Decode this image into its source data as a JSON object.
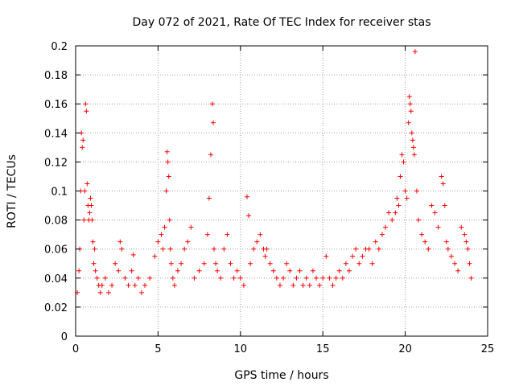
{
  "chart_data": {
    "type": "scatter",
    "title": "Day 072 of 2021, Rate Of TEC Index for receiver stas",
    "xlabel": "GPS time / hours",
    "ylabel": "ROTI / TECUs",
    "xlim": [
      0,
      25
    ],
    "ylim": [
      0,
      0.2
    ],
    "x_ticks": [
      0,
      5,
      10,
      15,
      20,
      25
    ],
    "x_tick_labels": [
      "0",
      "5",
      "10",
      "15",
      "20",
      "25"
    ],
    "y_ticks": [
      0,
      0.02,
      0.04,
      0.06,
      0.08,
      0.1,
      0.12,
      0.14,
      0.16,
      0.18,
      0.2
    ],
    "y_tick_labels": [
      "0",
      "0.02",
      "0.04",
      "0.06",
      "0.08",
      "0.1",
      "0.12",
      "0.14",
      "0.16",
      "0.18",
      "0.2"
    ],
    "grid": true,
    "marker": "plus",
    "color": "#ff0000",
    "series": [
      {
        "name": "ROTI",
        "x": [
          0.1,
          0.2,
          0.25,
          0.3,
          0.35,
          0.4,
          0.45,
          0.5,
          0.55,
          0.6,
          0.65,
          0.7,
          0.75,
          0.8,
          0.85,
          0.9,
          0.95,
          1.0,
          1.05,
          1.1,
          1.15,
          1.2,
          1.3,
          1.4,
          1.5,
          1.6,
          1.8,
          2.0,
          2.2,
          2.4,
          2.6,
          2.7,
          2.8,
          3.0,
          3.2,
          3.4,
          3.5,
          3.6,
          3.8,
          4.0,
          4.2,
          4.5,
          4.8,
          5.0,
          5.2,
          5.3,
          5.4,
          5.5,
          5.55,
          5.6,
          5.65,
          5.7,
          5.75,
          5.8,
          5.9,
          6.0,
          6.2,
          6.4,
          6.6,
          6.8,
          7.0,
          7.2,
          7.5,
          7.8,
          8.0,
          8.1,
          8.2,
          8.3,
          8.35,
          8.4,
          8.5,
          8.6,
          8.8,
          9.0,
          9.2,
          9.4,
          9.6,
          9.8,
          10.0,
          10.2,
          10.4,
          10.5,
          10.6,
          10.8,
          11.0,
          11.2,
          11.4,
          11.5,
          11.6,
          11.8,
          12.0,
          12.2,
          12.4,
          12.6,
          12.8,
          13.0,
          13.2,
          13.4,
          13.6,
          13.8,
          14.0,
          14.2,
          14.4,
          14.6,
          14.8,
          15.0,
          15.2,
          15.4,
          15.6,
          15.8,
          16.0,
          16.2,
          16.4,
          16.6,
          16.8,
          17.0,
          17.2,
          17.4,
          17.6,
          17.8,
          18.0,
          18.2,
          18.4,
          18.6,
          18.8,
          19.0,
          19.2,
          19.4,
          19.5,
          19.6,
          19.7,
          19.8,
          19.9,
          20.0,
          20.1,
          20.2,
          20.25,
          20.3,
          20.35,
          20.4,
          20.45,
          20.5,
          20.55,
          20.6,
          20.7,
          20.8,
          21.0,
          21.2,
          21.4,
          21.6,
          21.8,
          22.0,
          22.2,
          22.3,
          22.4,
          22.5,
          22.6,
          22.8,
          23.0,
          23.2,
          23.4,
          23.6,
          23.7,
          23.8,
          23.9,
          24.0
        ],
        "y": [
          0.03,
          0.045,
          0.06,
          0.1,
          0.14,
          0.13,
          0.135,
          0.08,
          0.1,
          0.16,
          0.155,
          0.105,
          0.09,
          0.08,
          0.085,
          0.095,
          0.09,
          0.08,
          0.065,
          0.05,
          0.06,
          0.045,
          0.04,
          0.035,
          0.03,
          0.035,
          0.04,
          0.03,
          0.035,
          0.05,
          0.045,
          0.065,
          0.06,
          0.04,
          0.035,
          0.045,
          0.056,
          0.035,
          0.04,
          0.03,
          0.035,
          0.04,
          0.055,
          0.065,
          0.07,
          0.06,
          0.075,
          0.1,
          0.127,
          0.12,
          0.11,
          0.08,
          0.06,
          0.05,
          0.04,
          0.035,
          0.045,
          0.05,
          0.06,
          0.065,
          0.075,
          0.04,
          0.045,
          0.05,
          0.07,
          0.095,
          0.125,
          0.16,
          0.147,
          0.06,
          0.05,
          0.045,
          0.04,
          0.06,
          0.07,
          0.05,
          0.04,
          0.045,
          0.04,
          0.035,
          0.096,
          0.083,
          0.05,
          0.06,
          0.065,
          0.07,
          0.06,
          0.055,
          0.06,
          0.05,
          0.045,
          0.04,
          0.035,
          0.04,
          0.05,
          0.045,
          0.035,
          0.04,
          0.045,
          0.035,
          0.04,
          0.035,
          0.045,
          0.04,
          0.035,
          0.04,
          0.055,
          0.04,
          0.035,
          0.04,
          0.045,
          0.04,
          0.05,
          0.045,
          0.055,
          0.06,
          0.05,
          0.055,
          0.06,
          0.06,
          0.05,
          0.065,
          0.06,
          0.07,
          0.075,
          0.085,
          0.08,
          0.085,
          0.095,
          0.09,
          0.11,
          0.125,
          0.12,
          0.1,
          0.095,
          0.147,
          0.165,
          0.16,
          0.155,
          0.14,
          0.135,
          0.13,
          0.125,
          0.196,
          0.1,
          0.08,
          0.07,
          0.065,
          0.06,
          0.09,
          0.085,
          0.075,
          0.11,
          0.105,
          0.09,
          0.065,
          0.06,
          0.055,
          0.05,
          0.045,
          0.075,
          0.07,
          0.065,
          0.06,
          0.05,
          0.04
        ]
      }
    ]
  }
}
